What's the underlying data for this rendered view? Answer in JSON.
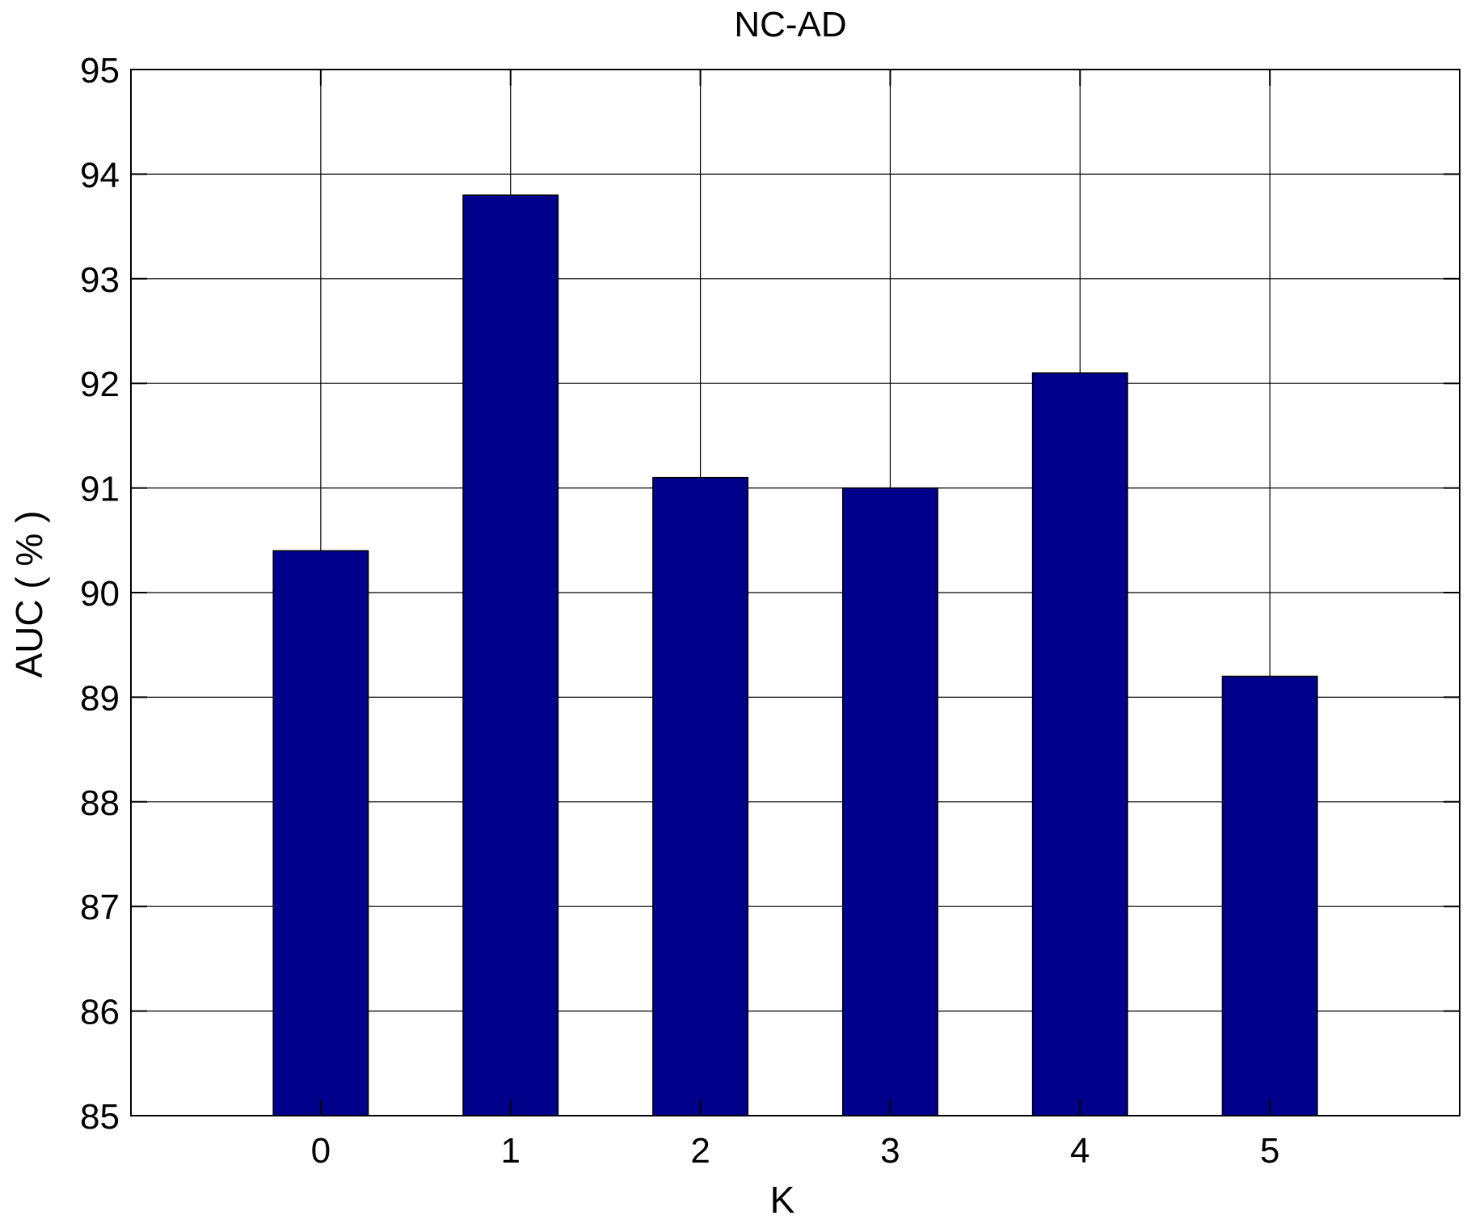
{
  "chart_data": {
    "type": "bar",
    "title": "NC-AD",
    "xlabel": "K",
    "ylabel": "AUC ( % )",
    "categories": [
      "0",
      "1",
      "2",
      "3",
      "4",
      "5"
    ],
    "values": [
      90.4,
      93.8,
      91.1,
      91.0,
      92.1,
      89.2
    ],
    "ylim": [
      85,
      95
    ],
    "xlim": [
      -1,
      6
    ],
    "yticks": [
      "85",
      "86",
      "87",
      "88",
      "89",
      "90",
      "91",
      "92",
      "93",
      "94",
      "95"
    ],
    "grid": true,
    "legend": "none",
    "colors": {
      "bar": "#00008b",
      "grid": "#000000",
      "axis": "#000000"
    }
  }
}
